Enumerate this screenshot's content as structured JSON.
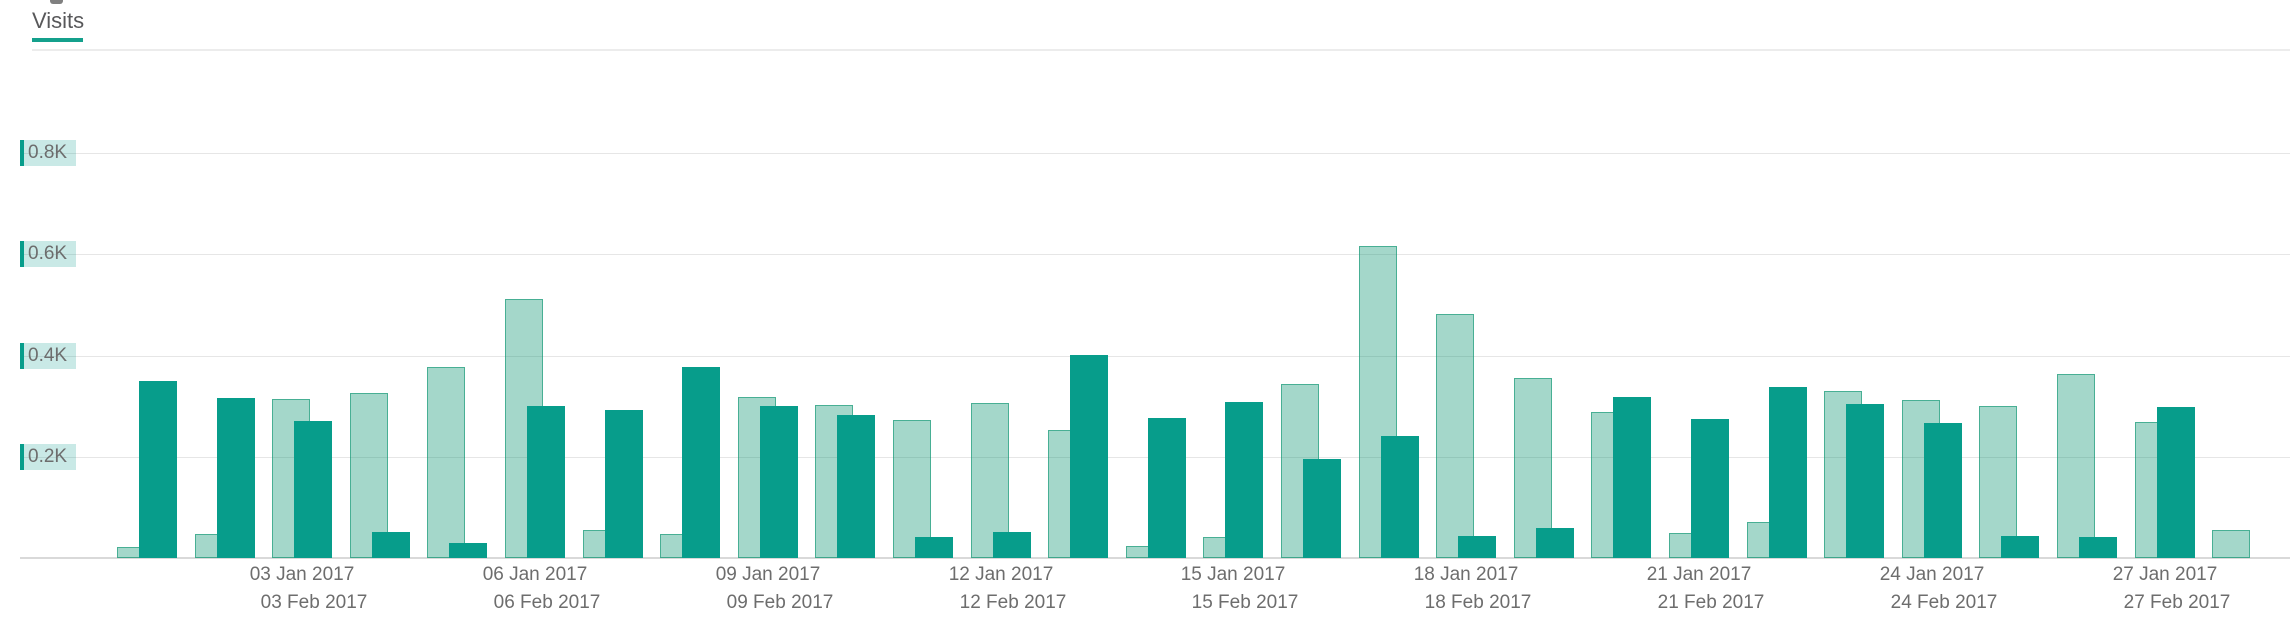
{
  "header": {
    "active_tab": "Visits"
  },
  "colors": {
    "accent_teal": "#14a08c",
    "bar_current_fill": "#079d8b",
    "bar_comparison_fill": "rgba(16,150,115,0.38)",
    "bar_comparison_border": "rgba(16,150,115,0.62)",
    "y_tick_chip_bg": "rgba(7,157,139,0.22)",
    "y_tick_chip_accent": "#079d8b",
    "grid_line": "#e6e6e6",
    "axis_line": "#d9d9d9",
    "label_text": "#6d6d6d",
    "title_text": "#58585a"
  },
  "chart_data": {
    "type": "bar",
    "title": "Visits",
    "unit": "visits",
    "grid": true,
    "legend_position": "none",
    "ylim": [
      0,
      880
    ],
    "y_ticks": [
      {
        "label": "0.2K",
        "value": 200
      },
      {
        "label": "0.4K",
        "value": 400
      },
      {
        "label": "0.6K",
        "value": 600
      },
      {
        "label": "0.8K",
        "value": 800
      }
    ],
    "days": 28,
    "x_ticks": [
      {
        "day": 3,
        "line1": "03 Jan 2017",
        "line2": "03 Feb 2017"
      },
      {
        "day": 6,
        "line1": "06 Jan 2017",
        "line2": "06 Feb 2017"
      },
      {
        "day": 9,
        "line1": "09 Jan 2017",
        "line2": "09 Feb 2017"
      },
      {
        "day": 12,
        "line1": "12 Jan 2017",
        "line2": "12 Feb 2017"
      },
      {
        "day": 15,
        "line1": "15 Jan 2017",
        "line2": "15 Feb 2017"
      },
      {
        "day": 18,
        "line1": "18 Jan 2017",
        "line2": "18 Feb 2017"
      },
      {
        "day": 21,
        "line1": "21 Jan 2017",
        "line2": "21 Feb 2017"
      },
      {
        "day": 24,
        "line1": "24 Jan 2017",
        "line2": "24 Feb 2017"
      },
      {
        "day": 27,
        "line1": "27 Jan 2017",
        "line2": "27 Feb 2017"
      }
    ],
    "series": [
      {
        "name": "Jan 2017",
        "style": "light",
        "values": [
          21,
          48,
          315,
          327,
          378,
          512,
          55,
          48,
          318,
          303,
          272,
          307,
          253,
          23,
          41,
          344,
          616,
          483,
          355,
          288,
          49,
          72,
          330,
          313,
          301,
          364,
          269,
          55
        ]
      },
      {
        "name": "Feb 2017",
        "style": "dark",
        "values": [
          349,
          316,
          270,
          52,
          30,
          300,
          292,
          378,
          300,
          283,
          42,
          52,
          401,
          277,
          309,
          195,
          242,
          44,
          60,
          318,
          274,
          338,
          304,
          267,
          43,
          42,
          298,
          null
        ]
      }
    ]
  }
}
